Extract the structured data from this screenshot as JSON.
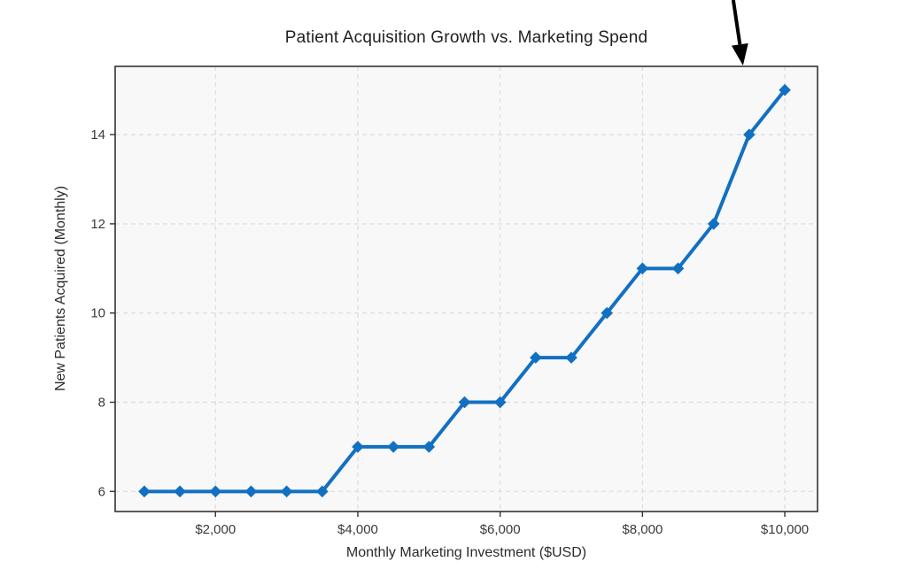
{
  "chart_data": {
    "type": "line",
    "title": "Patient Acquisition Growth vs. Marketing Spend",
    "xlabel": "Monthly Marketing Investment ($USD)",
    "ylabel": "New Patients Acquired (Monthly)",
    "x": [
      1000,
      1500,
      2000,
      2500,
      3000,
      3500,
      4000,
      4500,
      5000,
      5500,
      6000,
      6500,
      7000,
      7500,
      8000,
      8500,
      9000,
      9500,
      10000
    ],
    "y": [
      6,
      6,
      6,
      6,
      6,
      6,
      7,
      7,
      7,
      8,
      8,
      9,
      9,
      10,
      11,
      11,
      12,
      14,
      15
    ],
    "x_ticks": [
      2000,
      4000,
      6000,
      8000,
      10000
    ],
    "x_tick_labels": [
      "$2,000",
      "$4,000",
      "$6,000",
      "$8,000",
      "$10,000"
    ],
    "y_ticks": [
      6,
      8,
      10,
      12,
      14
    ],
    "y_tick_labels": [
      "6",
      "8",
      "10",
      "12",
      "14"
    ],
    "xlim": [
      590,
      10460
    ],
    "ylim": [
      5.55,
      15.53
    ],
    "grid": true,
    "legend": "none",
    "marker": "diamond",
    "annotation": {
      "shape": "arrow",
      "description": "black arrow pointing down at the $9,500 data point jump",
      "points_to": {
        "x": 9500,
        "y": 14
      },
      "color": "#000000"
    },
    "colors": {
      "line": "#1270c2",
      "plot_bg": "#f8f8f8",
      "grid": "#dcdcdc",
      "frame": "#333333",
      "tick_text": "#3a3a3a",
      "arrow": "#000000"
    }
  }
}
